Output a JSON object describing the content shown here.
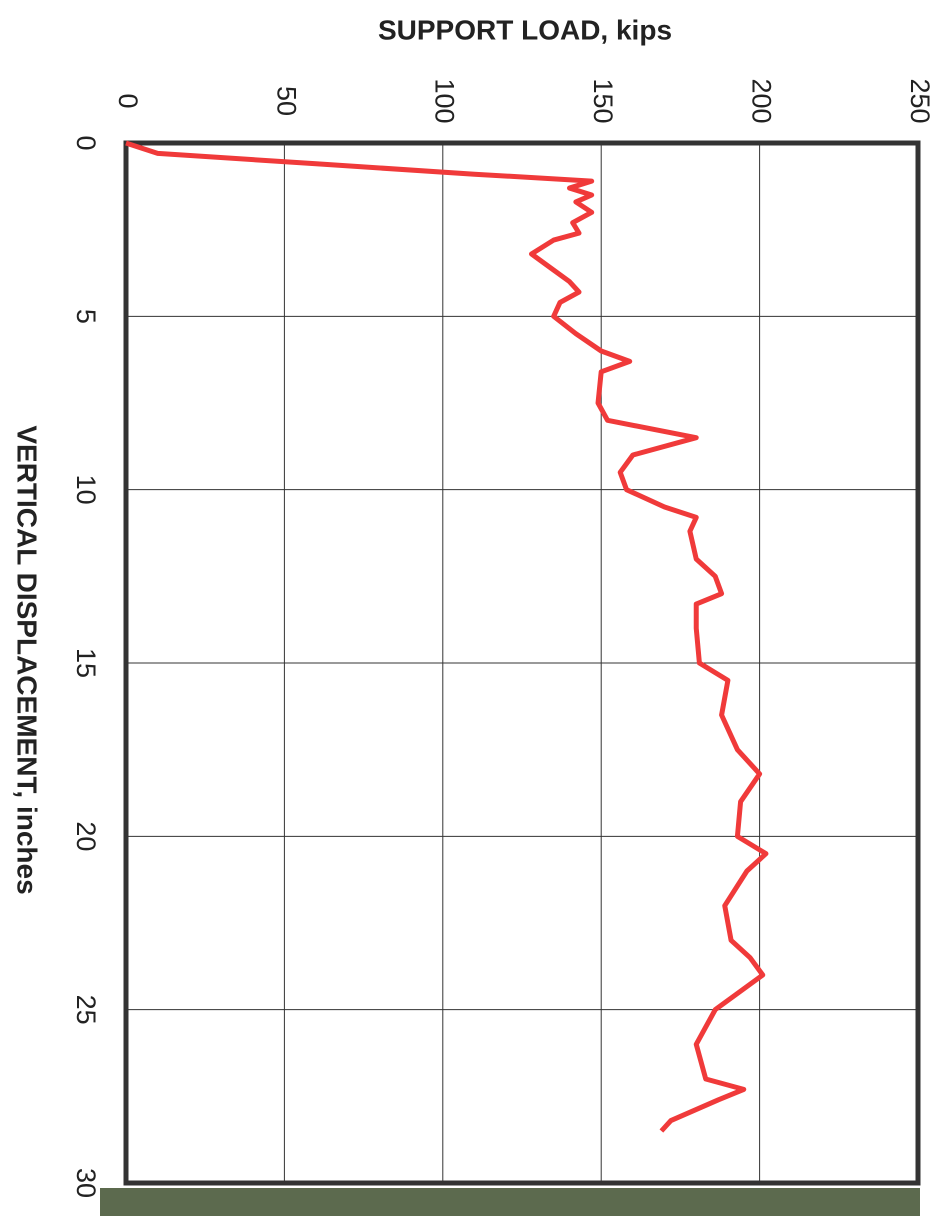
{
  "chart_data": {
    "type": "line",
    "y_label": "SUPPORT LOAD, kips",
    "x_label": "VERTICAL DISPLACEMENT, inches",
    "x": [
      0,
      0.3,
      0.6,
      0.9,
      1.1,
      1.3,
      1.5,
      1.7,
      2.0,
      2.3,
      2.6,
      2.8,
      3.2,
      3.6,
      4.0,
      4.3,
      4.6,
      5.0,
      5.5,
      6.0,
      6.3,
      6.6,
      7.5,
      8.0,
      8.5,
      9.0,
      9.5,
      10.0,
      10.5,
      10.8,
      11.2,
      12.0,
      12.5,
      13.0,
      13.3,
      14.0,
      15.0,
      15.5,
      16.5,
      17.5,
      18.2,
      19.0,
      20.0,
      20.5,
      21.0,
      22.0,
      23.0,
      23.5,
      24.0,
      25.0,
      26.0,
      27.0,
      27.3,
      27.6,
      28.2,
      28.5
    ],
    "values": [
      0,
      10,
      60,
      110,
      147,
      140,
      147,
      142,
      147,
      141,
      143,
      135,
      128,
      134,
      140,
      143,
      137,
      135,
      142,
      150,
      159,
      150,
      149,
      152,
      180,
      160,
      156,
      158,
      170,
      180,
      178,
      180,
      186,
      188,
      180,
      180,
      181,
      190,
      188,
      193,
      200,
      194,
      193,
      202,
      196,
      189,
      191,
      197,
      201,
      186,
      180,
      183,
      195,
      187,
      172,
      169
    ],
    "color": "#f03a3a",
    "xlim": [
      0,
      30
    ],
    "xticks": [
      0,
      5,
      10,
      15,
      20,
      25,
      30
    ],
    "ylim": [
      0,
      250
    ],
    "yticks": [
      0,
      50,
      100,
      150,
      200,
      250
    ],
    "grid": true
  }
}
